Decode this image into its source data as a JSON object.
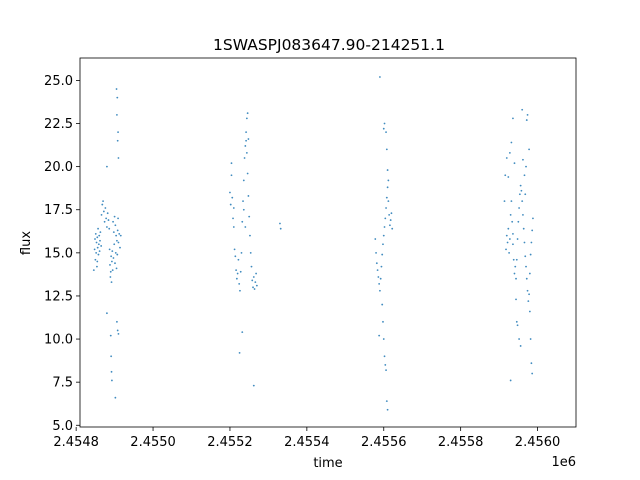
{
  "chart_data": {
    "type": "scatter",
    "title": "1SWASPJ083647.90-214251.1",
    "xlabel": "time",
    "ylabel": "flux",
    "x_offset_label": "1e6",
    "xlim": [
      2454810,
      2456100
    ],
    "ylim": [
      4.9,
      26.3
    ],
    "x_ticks": [
      2454800,
      2455000,
      2455200,
      2455400,
      2455600,
      2455800,
      2456000
    ],
    "x_tick_labels": [
      "2.4548",
      "2.4550",
      "2.4552",
      "2.4554",
      "2.4556",
      "2.4558",
      "2.4560"
    ],
    "y_ticks": [
      5.0,
      7.5,
      10.0,
      12.5,
      15.0,
      17.5,
      20.0,
      22.5,
      25.0
    ],
    "y_tick_labels": [
      "5.0",
      "7.5",
      "10.0",
      "12.5",
      "15.0",
      "17.5",
      "20.0",
      "22.5",
      "25.0"
    ],
    "grid": false,
    "marker_color": "#1f77b4",
    "series": [
      {
        "points": [
          [
            2454848,
            15.2
          ],
          [
            2454849,
            15.8
          ],
          [
            2454850,
            14.6
          ],
          [
            2454851,
            16.1
          ],
          [
            2454852,
            15.0
          ],
          [
            2454853,
            15.6
          ],
          [
            2454854,
            14.2
          ],
          [
            2454855,
            15.9
          ],
          [
            2454856,
            15.3
          ],
          [
            2454857,
            16.4
          ],
          [
            2454858,
            14.9
          ],
          [
            2454859,
            15.5
          ],
          [
            2454860,
            16.0
          ],
          [
            2454861,
            15.1
          ],
          [
            2454862,
            15.7
          ],
          [
            2454863,
            16.2
          ],
          [
            2454865,
            15.4
          ],
          [
            2454866,
            17.2
          ],
          [
            2454868,
            17.8
          ],
          [
            2454870,
            18.0
          ],
          [
            2454872,
            17.4
          ],
          [
            2454874,
            16.8
          ],
          [
            2454876,
            17.6
          ],
          [
            2454878,
            17.0
          ],
          [
            2454880,
            16.5
          ],
          [
            2454882,
            17.3
          ],
          [
            2454884,
            16.9
          ],
          [
            2454886,
            16.4
          ],
          [
            2454887,
            15.2
          ],
          [
            2454888,
            14.3
          ],
          [
            2454889,
            13.6
          ],
          [
            2454890,
            13.9
          ],
          [
            2454891,
            14.8
          ],
          [
            2454892,
            13.3
          ],
          [
            2454893,
            14.5
          ],
          [
            2454894,
            15.1
          ],
          [
            2454895,
            14.0
          ],
          [
            2454896,
            16.8
          ],
          [
            2454897,
            14.7
          ],
          [
            2454898,
            16.2
          ],
          [
            2454899,
            15.5
          ],
          [
            2454900,
            17.1
          ],
          [
            2454901,
            14.4
          ],
          [
            2454902,
            16.6
          ],
          [
            2454903,
            15.0
          ],
          [
            2454904,
            16.0
          ],
          [
            2454905,
            14.1
          ],
          [
            2454906,
            15.7
          ],
          [
            2454907,
            14.9
          ],
          [
            2454908,
            16.3
          ],
          [
            2454909,
            17.0
          ],
          [
            2454910,
            15.6
          ],
          [
            2454912,
            16.1
          ],
          [
            2454914,
            15.3
          ],
          [
            2454916,
            16.0
          ],
          [
            2454880,
            11.5
          ],
          [
            2454890,
            10.2
          ],
          [
            2454891,
            9.0
          ],
          [
            2454892,
            8.1
          ],
          [
            2454893,
            7.6
          ],
          [
            2454905,
            24.5
          ],
          [
            2454906,
            23.0
          ],
          [
            2454907,
            24.0
          ],
          [
            2454908,
            21.5
          ],
          [
            2454909,
            22.0
          ],
          [
            2454910,
            20.5
          ],
          [
            2454906,
            11.0
          ],
          [
            2454908,
            10.5
          ],
          [
            2454910,
            10.3
          ],
          [
            2454902,
            6.6
          ],
          [
            2454880,
            20.0
          ],
          [
            2454846,
            14.0
          ],
          [
            2454855,
            14.5
          ],
          [
            2455200,
            18.5
          ],
          [
            2455202,
            17.8
          ],
          [
            2455204,
            19.5
          ],
          [
            2455206,
            18.2
          ],
          [
            2455208,
            17.0
          ],
          [
            2455210,
            16.5
          ],
          [
            2455212,
            15.2
          ],
          [
            2455214,
            14.8
          ],
          [
            2455216,
            14.0
          ],
          [
            2455218,
            13.5
          ],
          [
            2455220,
            13.8
          ],
          [
            2455222,
            14.6
          ],
          [
            2455224,
            13.2
          ],
          [
            2455226,
            12.8
          ],
          [
            2455228,
            13.9
          ],
          [
            2455230,
            15.0
          ],
          [
            2455232,
            16.8
          ],
          [
            2455234,
            18.0
          ],
          [
            2455236,
            19.2
          ],
          [
            2455238,
            20.5
          ],
          [
            2455240,
            21.2
          ],
          [
            2455242,
            21.5
          ],
          [
            2455244,
            20.8
          ],
          [
            2455246,
            19.6
          ],
          [
            2455248,
            18.3
          ],
          [
            2455250,
            17.1
          ],
          [
            2455252,
            16.0
          ],
          [
            2455254,
            15.0
          ],
          [
            2455256,
            14.2
          ],
          [
            2455258,
            13.4
          ],
          [
            2455260,
            13.0
          ],
          [
            2455262,
            13.6
          ],
          [
            2455264,
            12.9
          ],
          [
            2455266,
            13.3
          ],
          [
            2455268,
            13.8
          ],
          [
            2455270,
            13.1
          ],
          [
            2455204,
            20.2
          ],
          [
            2455210,
            17.6
          ],
          [
            2455236,
            17.5
          ],
          [
            2455240,
            16.5
          ],
          [
            2455242,
            22.0
          ],
          [
            2455244,
            22.8
          ],
          [
            2455246,
            23.1
          ],
          [
            2455248,
            21.6
          ],
          [
            2455225,
            9.2
          ],
          [
            2455232,
            10.4
          ],
          [
            2455262,
            7.3
          ],
          [
            2455330,
            16.7
          ],
          [
            2455332,
            16.4
          ],
          [
            2455578,
            15.8
          ],
          [
            2455580,
            15.0
          ],
          [
            2455582,
            14.4
          ],
          [
            2455584,
            14.0
          ],
          [
            2455586,
            13.6
          ],
          [
            2455588,
            13.2
          ],
          [
            2455590,
            12.8
          ],
          [
            2455592,
            13.5
          ],
          [
            2455594,
            14.2
          ],
          [
            2455596,
            14.9
          ],
          [
            2455598,
            15.5
          ],
          [
            2455600,
            16.0
          ],
          [
            2455602,
            16.5
          ],
          [
            2455604,
            17.0
          ],
          [
            2455606,
            17.6
          ],
          [
            2455608,
            18.2
          ],
          [
            2455610,
            18.8
          ],
          [
            2455612,
            18.0
          ],
          [
            2455614,
            17.2
          ],
          [
            2455616,
            16.6
          ],
          [
            2455618,
            16.9
          ],
          [
            2455620,
            17.3
          ],
          [
            2455622,
            16.4
          ],
          [
            2455596,
            12.0
          ],
          [
            2455598,
            11.0
          ],
          [
            2455600,
            10.0
          ],
          [
            2455602,
            9.0
          ],
          [
            2455604,
            8.5
          ],
          [
            2455606,
            8.2
          ],
          [
            2455608,
            6.4
          ],
          [
            2455610,
            5.9
          ],
          [
            2455590,
            25.2
          ],
          [
            2455600,
            22.2
          ],
          [
            2455602,
            22.5
          ],
          [
            2455606,
            22.0
          ],
          [
            2455608,
            21.0
          ],
          [
            2455610,
            19.8
          ],
          [
            2455612,
            19.2
          ],
          [
            2455588,
            10.2
          ],
          [
            2455918,
            15.2
          ],
          [
            2455920,
            16.0
          ],
          [
            2455922,
            15.6
          ],
          [
            2455924,
            16.4
          ],
          [
            2455926,
            15.0
          ],
          [
            2455928,
            15.8
          ],
          [
            2455930,
            17.2
          ],
          [
            2455932,
            18.0
          ],
          [
            2455934,
            16.8
          ],
          [
            2455936,
            15.5
          ],
          [
            2455938,
            14.6
          ],
          [
            2455940,
            13.8
          ],
          [
            2455942,
            14.2
          ],
          [
            2455944,
            13.5
          ],
          [
            2455946,
            14.6
          ],
          [
            2455948,
            15.8
          ],
          [
            2455950,
            16.8
          ],
          [
            2455952,
            17.6
          ],
          [
            2455954,
            18.4
          ],
          [
            2455956,
            18.9
          ],
          [
            2455958,
            18.6
          ],
          [
            2455960,
            18.0
          ],
          [
            2455962,
            17.2
          ],
          [
            2455964,
            16.4
          ],
          [
            2455966,
            15.6
          ],
          [
            2455968,
            14.8
          ],
          [
            2455970,
            14.2
          ],
          [
            2455972,
            13.5
          ],
          [
            2455974,
            12.8
          ],
          [
            2455976,
            12.2
          ],
          [
            2455978,
            12.6
          ],
          [
            2455980,
            13.8
          ],
          [
            2455982,
            14.9
          ],
          [
            2455984,
            15.6
          ],
          [
            2455986,
            16.3
          ],
          [
            2455988,
            17.0
          ],
          [
            2455914,
            18.0
          ],
          [
            2455916,
            19.5
          ],
          [
            2455920,
            20.5
          ],
          [
            2455924,
            19.4
          ],
          [
            2455928,
            20.8
          ],
          [
            2455932,
            21.4
          ],
          [
            2455936,
            22.8
          ],
          [
            2455940,
            20.2
          ],
          [
            2455944,
            12.3
          ],
          [
            2455946,
            11.0
          ],
          [
            2455948,
            10.8
          ],
          [
            2455952,
            10.0
          ],
          [
            2455956,
            9.6
          ],
          [
            2455960,
            23.3
          ],
          [
            2455962,
            20.4
          ],
          [
            2455966,
            19.5
          ],
          [
            2455968,
            18.4
          ],
          [
            2455970,
            20.0
          ],
          [
            2455972,
            22.7
          ],
          [
            2455974,
            23.0
          ],
          [
            2455978,
            21.0
          ],
          [
            2455980,
            11.6
          ],
          [
            2455982,
            10.0
          ],
          [
            2455984,
            8.6
          ],
          [
            2455986,
            8.0
          ],
          [
            2455930,
            7.6
          ],
          [
            2455936,
            16.1
          ]
        ]
      }
    ]
  }
}
